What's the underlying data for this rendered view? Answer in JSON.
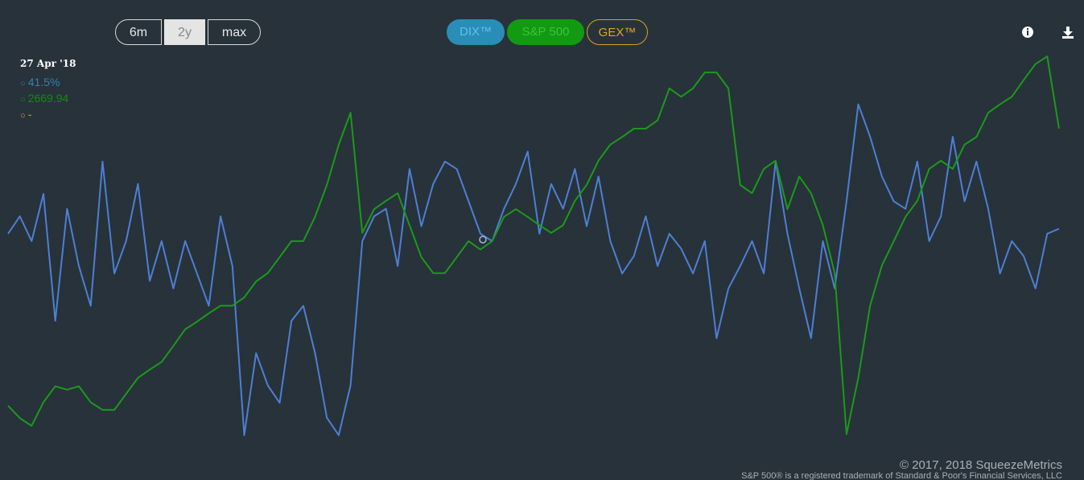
{
  "controls": {
    "ranges": [
      "6m",
      "2y",
      "max"
    ],
    "series_toggles": [
      "DIX™",
      "S&P 500",
      "GEX™"
    ]
  },
  "tooltip": {
    "date": "27 Apr '18",
    "dix": "41.5%",
    "spx": "2669.94",
    "gex": "-"
  },
  "footer": {
    "copyright": "© 2017, 2018 SqueezeMetrics",
    "trademark": "S&P 500® is a registered trademark of Standard & Poor's Financial Services, LLC"
  },
  "chart_data": {
    "type": "line",
    "ylim": [
      32,
      50
    ],
    "y2lim": [
      2340,
      2985
    ],
    "series": [
      {
        "name": "DIX™",
        "color": "#4d7fd6",
        "values": [
          41.9,
          42.6,
          41.6,
          43.5,
          38.4,
          42.9,
          40.6,
          39.0,
          44.8,
          40.3,
          41.6,
          43.9,
          40.0,
          41.6,
          39.7,
          41.6,
          40.3,
          39.0,
          42.6,
          40.6,
          33.8,
          37.1,
          35.8,
          35.1,
          38.4,
          39.0,
          37.1,
          34.5,
          33.8,
          35.8,
          41.6,
          42.6,
          42.9,
          40.6,
          44.5,
          42.2,
          43.9,
          44.8,
          44.5,
          43.2,
          41.9,
          41.6,
          42.9,
          43.9,
          45.2,
          41.9,
          43.9,
          42.9,
          44.5,
          42.2,
          44.2,
          41.6,
          40.3,
          41.0,
          42.6,
          40.6,
          41.9,
          41.3,
          40.3,
          41.6,
          37.7,
          39.7,
          40.6,
          41.6,
          40.3,
          44.8,
          41.9,
          39.7,
          37.7,
          41.6,
          39.7,
          43.2,
          47.1,
          45.8,
          44.2,
          43.2,
          42.9,
          44.8,
          41.6,
          42.6,
          45.8,
          43.2,
          44.8,
          42.9,
          40.3,
          41.6,
          41.0,
          39.7,
          41.9,
          42.1
        ]
      },
      {
        "name": "S&P 500",
        "color": "#1a9a1a",
        "axis": "y2",
        "values": [
          2447,
          2429,
          2418,
          2452,
          2475,
          2470,
          2475,
          2452,
          2441,
          2441,
          2464,
          2487,
          2499,
          2510,
          2533,
          2557,
          2568,
          2580,
          2591,
          2591,
          2603,
          2626,
          2638,
          2661,
          2684,
          2684,
          2719,
          2765,
          2823,
          2869,
          2696,
          2730,
          2742,
          2753,
          2707,
          2661,
          2638,
          2638,
          2661,
          2684,
          2672,
          2684,
          2719,
          2730,
          2719,
          2707,
          2696,
          2707,
          2742,
          2765,
          2800,
          2823,
          2834,
          2846,
          2846,
          2858,
          2904,
          2892,
          2904,
          2927,
          2927,
          2904,
          2765,
          2753,
          2788,
          2800,
          2730,
          2777,
          2753,
          2707,
          2638,
          2406,
          2487,
          2591,
          2649,
          2684,
          2719,
          2742,
          2788,
          2800,
          2788,
          2823,
          2834,
          2869,
          2881,
          2892,
          2916,
          2939,
          2950,
          2846
        ]
      }
    ]
  }
}
